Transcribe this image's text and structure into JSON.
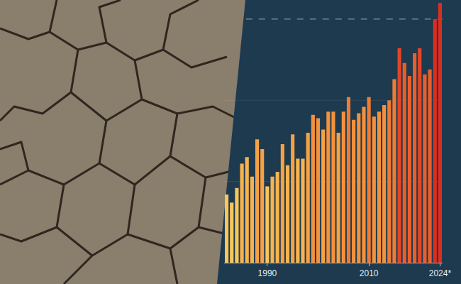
{
  "chart_data": {
    "type": "bar",
    "categories": [
      null,
      null,
      null,
      null,
      null,
      null,
      null,
      null,
      "1990",
      null,
      null,
      null,
      null,
      null,
      null,
      null,
      null,
      null,
      null,
      null,
      null,
      null,
      null,
      null,
      null,
      null,
      null,
      null,
      "2010",
      null,
      null,
      null,
      null,
      null,
      null,
      null,
      null,
      null,
      null,
      null,
      null,
      null,
      "2024*"
    ],
    "values": [
      0.42,
      0.37,
      0.46,
      0.61,
      0.65,
      0.53,
      0.76,
      0.7,
      0.47,
      0.53,
      0.56,
      0.73,
      0.6,
      0.79,
      0.64,
      0.64,
      0.8,
      0.91,
      0.89,
      0.82,
      0.93,
      0.93,
      0.8,
      0.93,
      1.02,
      0.88,
      0.92,
      0.96,
      1.02,
      0.9,
      0.93,
      0.97,
      1.0,
      1.13,
      1.32,
      1.23,
      1.15,
      1.29,
      1.32,
      1.16,
      1.19,
      1.5,
      1.6
    ],
    "colors": [
      "#f7c65a",
      "#f7c65a",
      "#f7c65a",
      "#f6b34e",
      "#f6b34e",
      "#f6b34e",
      "#f5a244",
      "#f5a244",
      "#f7c65a",
      "#f6b34e",
      "#f6b34e",
      "#f5a244",
      "#f6b34e",
      "#f5a244",
      "#f6b34e",
      "#f6b34e",
      "#f5a244",
      "#f3913c",
      "#f3913c",
      "#f5a244",
      "#f3913c",
      "#f3913c",
      "#f5a244",
      "#f3913c",
      "#ef7a33",
      "#f3913c",
      "#f3913c",
      "#f3913c",
      "#ef7a33",
      "#f3913c",
      "#f3913c",
      "#f3913c",
      "#ef7a33",
      "#ef7a33",
      "#e54526",
      "#ea5e2b",
      "#ea5e2b",
      "#ea5e2b",
      "#e54526",
      "#ea5e2b",
      "#ea5e2b",
      "#de2d1f",
      "#de2d1f"
    ],
    "ylim": [
      0,
      1.6
    ],
    "yticks": [
      0,
      0.5,
      1,
      1.5
    ],
    "grid": true,
    "tick_labels": "x"
  }
}
